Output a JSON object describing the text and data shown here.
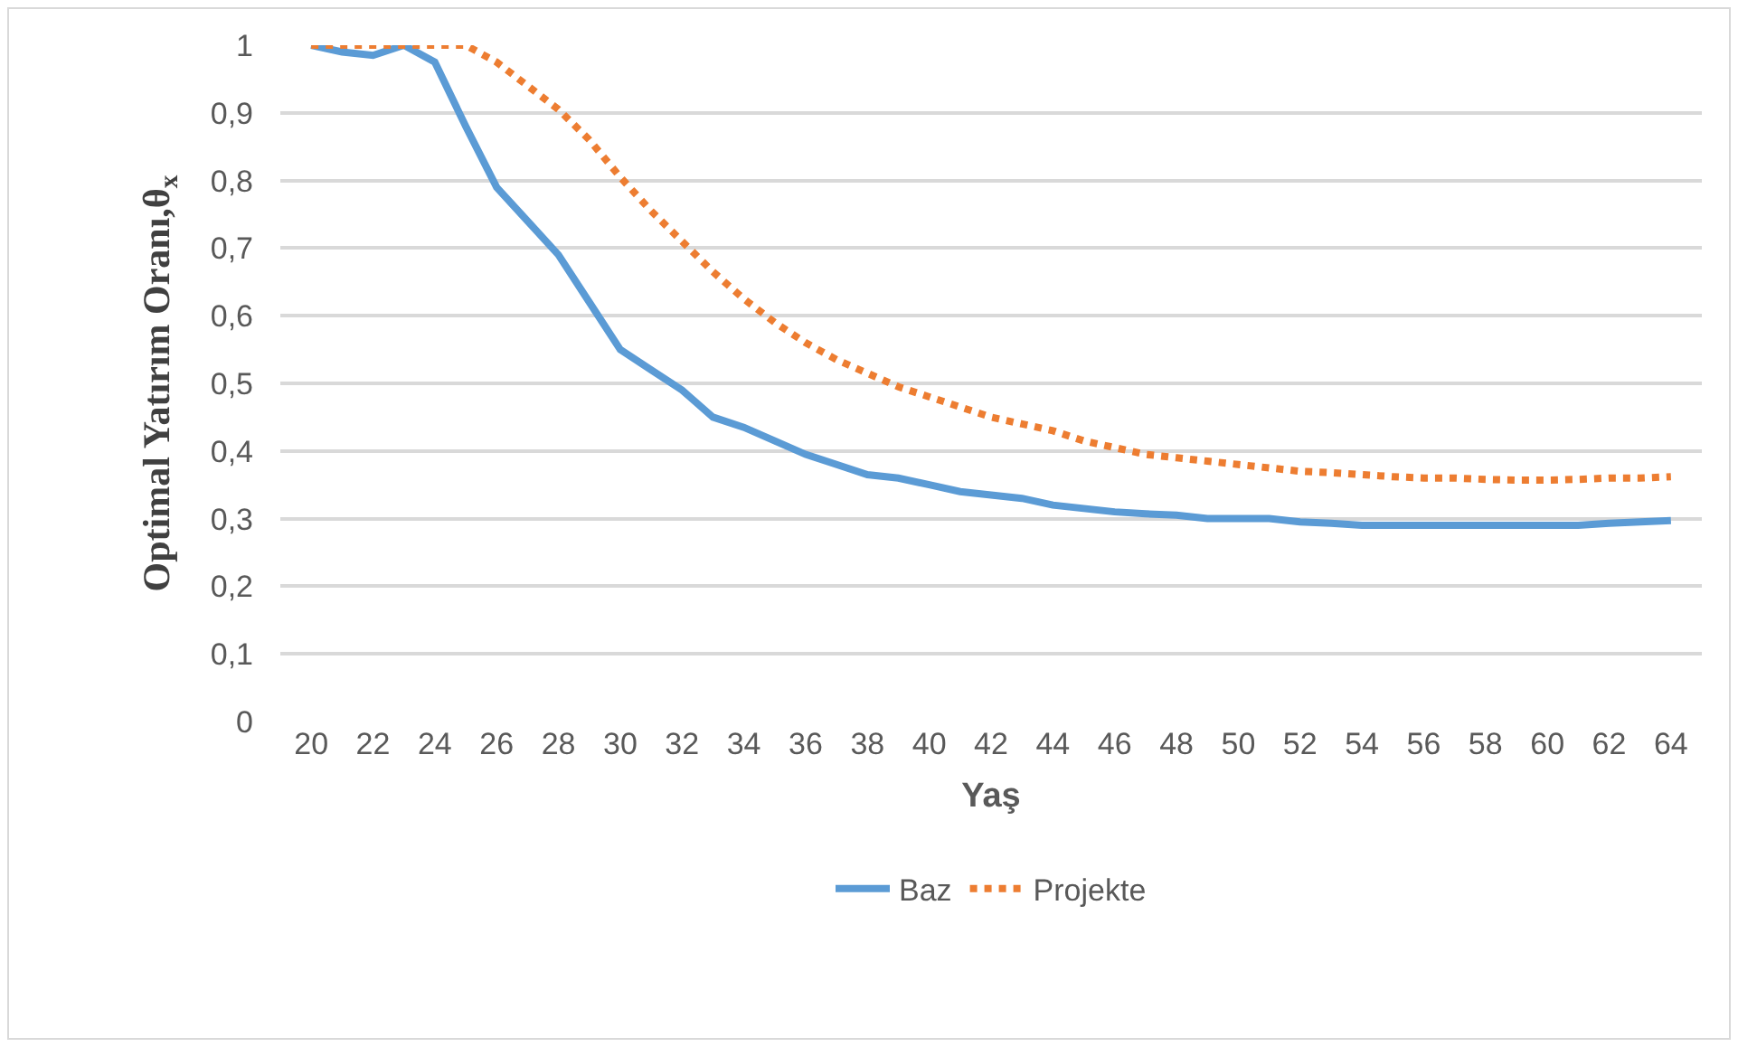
{
  "chart_data": {
    "type": "line",
    "xlabel": "Yaş",
    "ylabel": "Optimal Yatırım Oranı,θ$_{x}$",
    "x": [
      20,
      21,
      22,
      23,
      24,
      25,
      26,
      27,
      28,
      29,
      30,
      31,
      32,
      33,
      34,
      35,
      36,
      37,
      38,
      39,
      40,
      41,
      42,
      43,
      44,
      45,
      46,
      47,
      48,
      49,
      50,
      51,
      52,
      53,
      54,
      55,
      56,
      57,
      58,
      59,
      60,
      61,
      62,
      63,
      64
    ],
    "series": [
      {
        "name": "Baz",
        "color": "#5b9bd5",
        "line_style": "solid",
        "values": [
          1.0,
          0.99,
          0.985,
          1.0,
          0.975,
          0.88,
          0.79,
          0.74,
          0.69,
          0.62,
          0.55,
          0.52,
          0.49,
          0.45,
          0.435,
          0.415,
          0.395,
          0.38,
          0.365,
          0.36,
          0.35,
          0.34,
          0.335,
          0.33,
          0.32,
          0.315,
          0.31,
          0.307,
          0.305,
          0.3,
          0.3,
          0.3,
          0.295,
          0.293,
          0.29,
          0.29,
          0.29,
          0.29,
          0.29,
          0.29,
          0.29,
          0.29,
          0.293,
          0.295,
          0.297
        ]
      },
      {
        "name": "Projekte",
        "color": "#ed7d31",
        "line_style": "dotted",
        "values": [
          1.0,
          1.0,
          1.0,
          1.0,
          1.0,
          1.0,
          0.975,
          0.94,
          0.905,
          0.86,
          0.805,
          0.755,
          0.71,
          0.665,
          0.625,
          0.59,
          0.56,
          0.535,
          0.515,
          0.495,
          0.48,
          0.465,
          0.45,
          0.44,
          0.43,
          0.415,
          0.405,
          0.395,
          0.39,
          0.385,
          0.38,
          0.375,
          0.37,
          0.368,
          0.365,
          0.362,
          0.36,
          0.36,
          0.358,
          0.357,
          0.357,
          0.358,
          0.36,
          0.36,
          0.362
        ]
      }
    ],
    "xlim": [
      19,
      65
    ],
    "xticks": [
      20,
      22,
      24,
      26,
      28,
      30,
      32,
      34,
      36,
      38,
      40,
      42,
      44,
      46,
      48,
      50,
      52,
      54,
      56,
      58,
      60,
      62,
      64
    ],
    "ylim": [
      0,
      1
    ],
    "yticks": [
      0,
      {
        "value": 0.1,
        "label": "0,1"
      },
      {
        "value": 0.2,
        "label": "0,2"
      },
      {
        "value": 0.3,
        "label": "0,3"
      },
      {
        "value": 0.4,
        "label": "0,4"
      },
      {
        "value": 0.5,
        "label": "0,5"
      },
      {
        "value": 0.6,
        "label": "0,6"
      },
      {
        "value": 0.7,
        "label": "0,7"
      },
      {
        "value": 0.8,
        "label": "0,8"
      },
      {
        "value": 0.9,
        "label": "0,9"
      },
      1
    ],
    "grid": "y",
    "legend": "bottom",
    "marker": "none"
  }
}
